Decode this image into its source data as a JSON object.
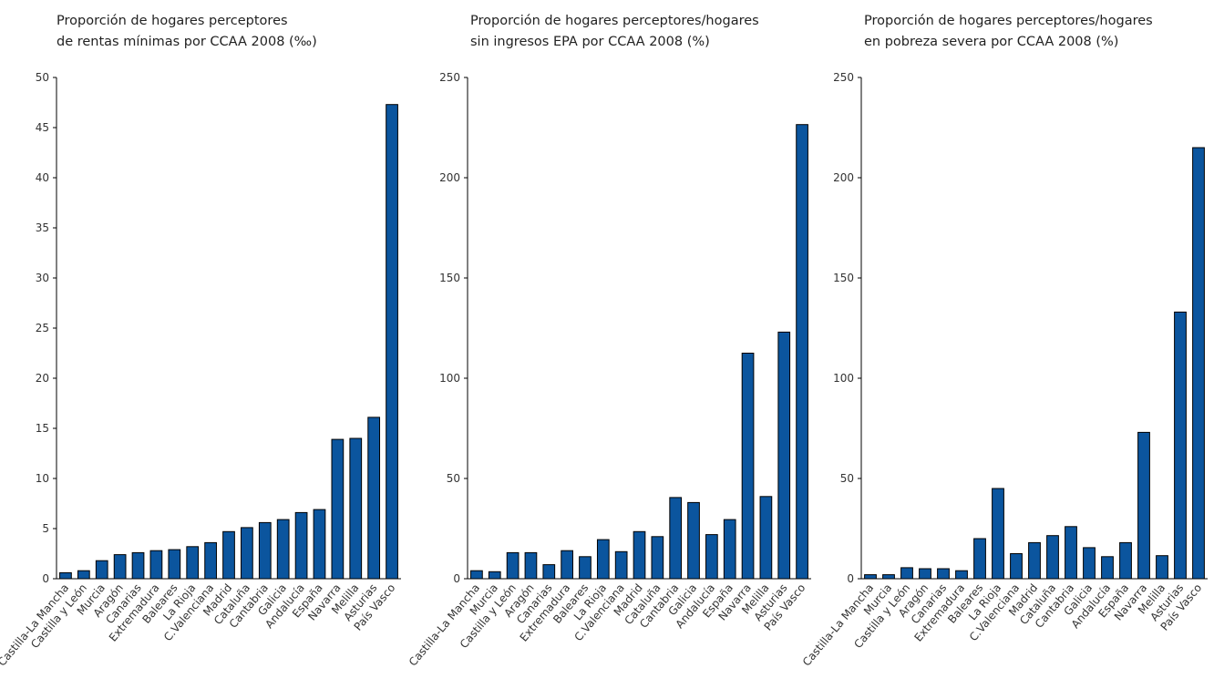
{
  "chart_data": [
    {
      "type": "bar",
      "title": [
        "Proporción de hogares perceptores",
        "de rentas mínimas por CCAA 2008 (‰)"
      ],
      "categories": [
        "Castilla-La Mancha",
        "Castilla y León",
        "Murcia",
        "Aragón",
        "Canarias",
        "Extremadura",
        "Baleares",
        "La Rioja",
        "C.Valenciana",
        "Madrid",
        "Cataluña",
        "Cantabria",
        "Galicia",
        "Andalucía",
        "España",
        "Navarra",
        "Melilla",
        "Asturias",
        "País Vasco"
      ],
      "values": [
        0.6,
        0.8,
        1.8,
        2.4,
        2.6,
        2.8,
        2.9,
        3.2,
        3.6,
        4.7,
        5.1,
        5.6,
        5.9,
        6.6,
        6.9,
        13.9,
        14.0,
        16.1,
        47.3
      ],
      "color": "#0b559e",
      "ylim": [
        0,
        50
      ],
      "yticks": [
        0,
        5,
        10,
        15,
        20,
        25,
        30,
        35,
        40,
        45,
        50
      ]
    },
    {
      "type": "bar",
      "title": [
        "Proporción de hogares perceptores/hogares",
        "sin ingresos EPA por CCAA 2008 (%)"
      ],
      "categories": [
        "Castilla-La Mancha",
        "Murcia",
        "Castilla y León",
        "Aragón",
        "Canarias",
        "Extremadura",
        "Baleares",
        "La Rioja",
        "C.Valenciana",
        "Madrid",
        "Cataluña",
        "Cantabria",
        "Galicia",
        "Andalucía",
        "España",
        "Navarra",
        "Melilla",
        "Asturias",
        "País Vasco"
      ],
      "values": [
        4,
        3.5,
        13,
        13,
        7,
        14,
        11,
        19.5,
        13.5,
        23.5,
        21,
        40.5,
        38,
        22,
        29.5,
        112.5,
        41,
        123,
        226.5
      ],
      "color": "#0b559e",
      "ylim": [
        0,
        250
      ],
      "yticks": [
        0,
        50,
        100,
        150,
        200,
        250
      ]
    },
    {
      "type": "bar",
      "title": [
        "Proporción de hogares perceptores/hogares",
        "en pobreza severa por CCAA 2008 (%)"
      ],
      "categories": [
        "Castilla-La Mancha",
        "Murcia",
        "Castilla y León",
        "Aragón",
        "Canarias",
        "Extremadura",
        "Baleares",
        "La Rioja",
        "C.Valenciana",
        "Madrid",
        "Cataluña",
        "Cantabria",
        "Galicia",
        "Andalucía",
        "España",
        "Navarra",
        "Melilla",
        "Asturias",
        "País Vasco"
      ],
      "values": [
        2,
        2,
        5.5,
        5,
        5,
        4,
        20,
        45,
        12.5,
        18,
        21.5,
        26,
        15.5,
        11,
        18,
        73,
        11.5,
        133,
        215
      ],
      "color": "#0b559e",
      "ylim": [
        0,
        250
      ],
      "yticks": [
        0,
        50,
        100,
        150,
        200,
        250
      ]
    }
  ]
}
